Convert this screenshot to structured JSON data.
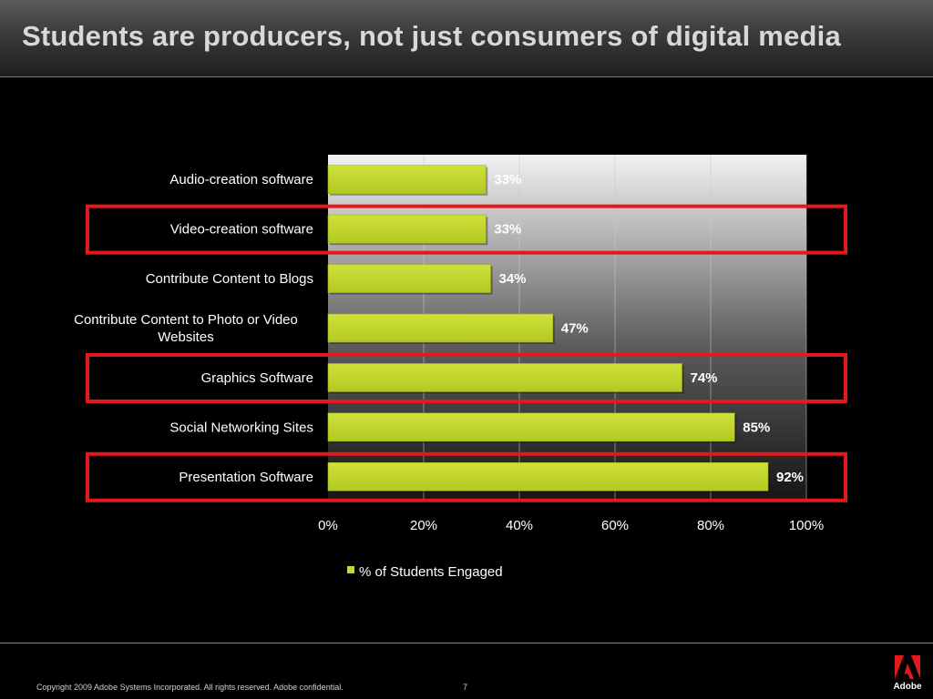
{
  "slide": {
    "title": "Students are producers, not just consumers of digital media",
    "copyright": "Copyright 2009 Adobe Systems Incorporated.  All rights reserved.  Adobe confidential.",
    "page_number": "7",
    "logo_text": "Adobe"
  },
  "colors": {
    "bar": "#c3d72e",
    "highlight": "#e4191c",
    "plot_background_top": "#f4f4f4",
    "plot_background_bottom": "#141414"
  },
  "chart_data": {
    "type": "bar",
    "orientation": "horizontal",
    "title": "",
    "xlabel": "",
    "ylabel": "",
    "categories": [
      "Audio-creation software",
      "Video-creation software",
      "Contribute Content to Blogs",
      "Contribute Content to Photo or Video Websites",
      "Graphics Software",
      "Social Networking Sites",
      "Presentation Software"
    ],
    "category_lines": [
      [
        "Audio-creation software"
      ],
      [
        "Video-creation software"
      ],
      [
        "Contribute Content to Blogs"
      ],
      [
        "Contribute Content to Photo or Video",
        "Websites"
      ],
      [
        "Graphics Software"
      ],
      [
        "Social Networking Sites"
      ],
      [
        "Presentation Software"
      ]
    ],
    "series": [
      {
        "name": "% of Students Engaged",
        "values": [
          33,
          33,
          34,
          47,
          74,
          85,
          92
        ],
        "data_labels": [
          "33%",
          "33%",
          "34%",
          "47%",
          "74%",
          "85%",
          "92%"
        ]
      }
    ],
    "xlim": [
      0,
      100
    ],
    "x_ticks": [
      0,
      20,
      40,
      60,
      80,
      100
    ],
    "x_tick_labels": [
      "0%",
      "20%",
      "40%",
      "60%",
      "80%",
      "100%"
    ],
    "grid": true,
    "legend_position": "bottom",
    "highlighted_categories": [
      "Video-creation software",
      "Graphics Software",
      "Presentation Software"
    ]
  }
}
